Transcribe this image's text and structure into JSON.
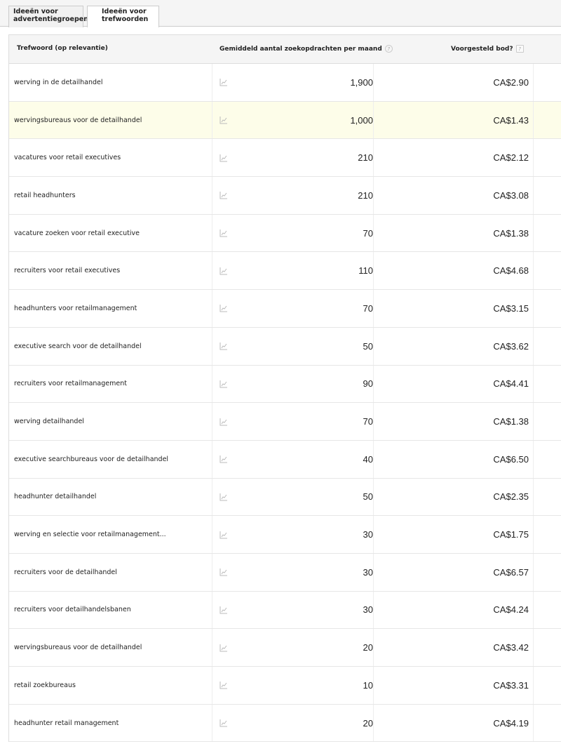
{
  "tabs": [
    {
      "label": "Ideeën voor advertentiegroepen",
      "active": false
    },
    {
      "label": "Ideeën voor trefwoorden",
      "active": true
    }
  ],
  "header": {
    "keyword": "Trefwoord (op relevantie)",
    "volume": "Gemiddeld aantal zoekopdrachten per maand",
    "bid": "Voorgesteld bod?",
    "help": "?"
  },
  "rows": [
    {
      "keyword": "werving in de detailhandel",
      "volume": "1,900",
      "bid": "CA$2.90"
    },
    {
      "keyword": "wervingsbureaus voor de detailhandel",
      "volume": "1,000",
      "bid": "CA$1.43",
      "highlighted": true
    },
    {
      "keyword": "vacatures voor retail executives",
      "volume": "210",
      "bid": "CA$2.12"
    },
    {
      "keyword": "retail headhunters",
      "volume": "210",
      "bid": "CA$3.08"
    },
    {
      "keyword": "vacature zoeken voor retail executive",
      "volume": "70",
      "bid": "CA$1.38"
    },
    {
      "keyword": "recruiters voor retail executives",
      "volume": "110",
      "bid": "CA$4.68"
    },
    {
      "keyword": "headhunters voor retailmanagement",
      "volume": "70",
      "bid": "CA$3.15"
    },
    {
      "keyword": "executive search voor de detailhandel",
      "volume": "50",
      "bid": "CA$3.62"
    },
    {
      "keyword": "recruiters voor retailmanagement",
      "volume": "90",
      "bid": "CA$4.41"
    },
    {
      "keyword": "werving detailhandel",
      "volume": "70",
      "bid": "CA$1.38"
    },
    {
      "keyword": "executive searchbureaus voor de detailhandel",
      "volume": "40",
      "bid": "CA$6.50"
    },
    {
      "keyword": "headhunter detailhandel",
      "volume": "50",
      "bid": "CA$2.35"
    },
    {
      "keyword": "werving en selectie voor retailmanagement...",
      "volume": "30",
      "bid": "CA$1.75"
    },
    {
      "keyword": "recruiters voor de detailhandel",
      "volume": "30",
      "bid": "CA$6.57"
    },
    {
      "keyword": "recruiters voor detailhandelsbanen",
      "volume": "30",
      "bid": "CA$4.24"
    },
    {
      "keyword": "wervingsbureaus voor de detailhandel",
      "volume": "20",
      "bid": "CA$3.42"
    },
    {
      "keyword": "retail zoekbureaus",
      "volume": "10",
      "bid": "CA$3.31"
    },
    {
      "keyword": "headhunter retail management",
      "volume": "20",
      "bid": "CA$4.19"
    }
  ],
  "colors": {
    "highlight": "#fdfde9",
    "header_bg": "#f5f5f5"
  }
}
